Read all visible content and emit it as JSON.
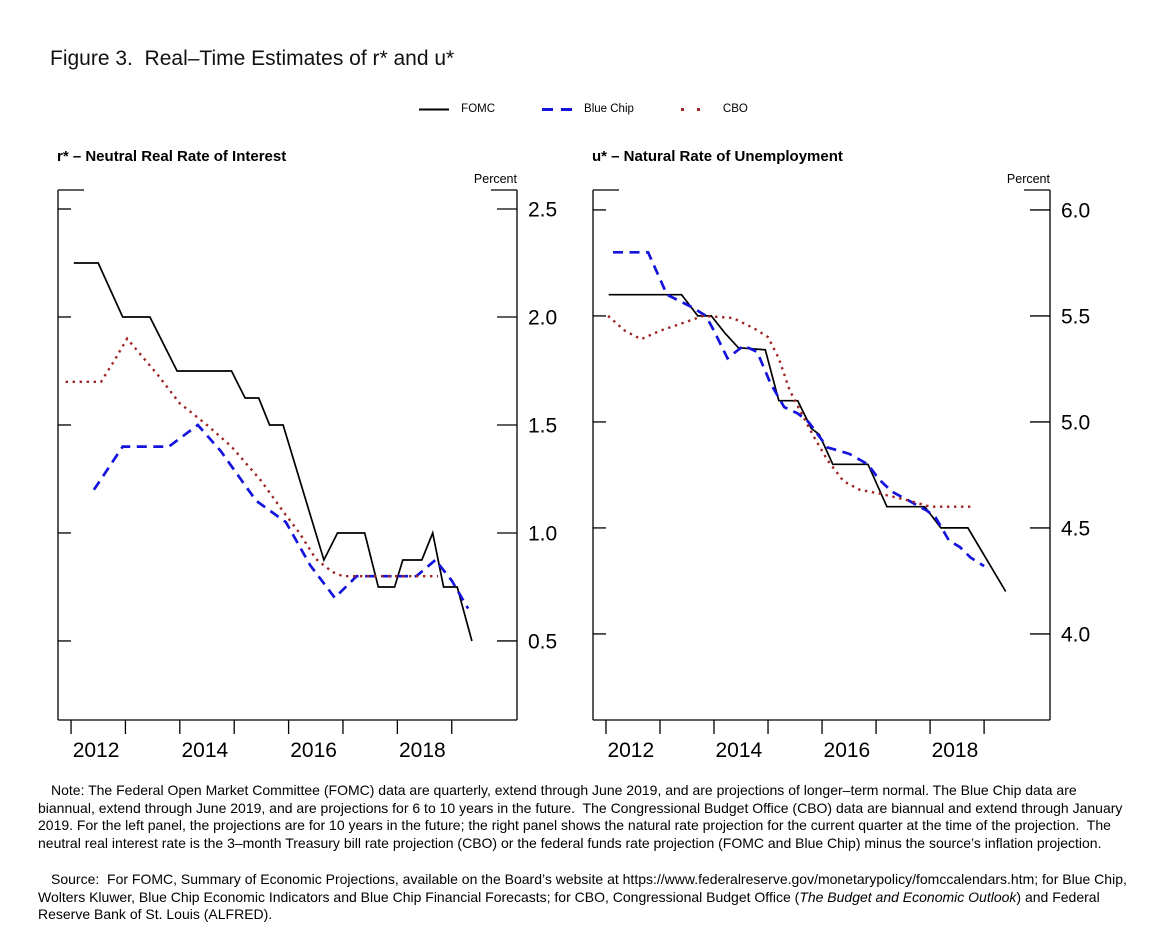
{
  "figure": {
    "title": "Figure 3.  Real–Time Estimates of r* and u*"
  },
  "legend": {
    "items": [
      {
        "label": "FOMC",
        "style": "solid",
        "color": "#000000"
      },
      {
        "label": "Blue Chip",
        "style": "dashed",
        "color": "#1414dd"
      },
      {
        "label": "CBO",
        "style": "dotted",
        "color": "#a02424"
      }
    ]
  },
  "chart_data": [
    {
      "type": "line",
      "panel": "left",
      "title": "r* – Neutral Real Rate of Interest",
      "unit_label": "Percent",
      "xlim": [
        2011.76,
        2020.2
      ],
      "ylim": [
        0.134,
        2.588
      ],
      "x_ticks": [
        2012,
        2013,
        2014,
        2015,
        2016,
        2017,
        2018,
        2019
      ],
      "x_tick_labels": [
        {
          "value": 2012.46,
          "label": "2012"
        },
        {
          "value": 2014.46,
          "label": "2014"
        },
        {
          "value": 2016.46,
          "label": "2016"
        },
        {
          "value": 2018.46,
          "label": "2018"
        }
      ],
      "y_ticks": [
        {
          "value": 0.5,
          "label": "0.5"
        },
        {
          "value": 1.0,
          "label": "1.0"
        },
        {
          "value": 1.5,
          "label": "1.5"
        },
        {
          "value": 2.0,
          "label": "2.0"
        },
        {
          "value": 2.5,
          "label": "2.5"
        }
      ],
      "series": [
        {
          "name": "FOMC",
          "style": "solid",
          "color": "#000000",
          "points": [
            [
              2012.05,
              2.25
            ],
            [
              2012.5,
              2.25
            ],
            [
              2012.95,
              2.0
            ],
            [
              2013.45,
              2.0
            ],
            [
              2013.95,
              1.75
            ],
            [
              2014.95,
              1.75
            ],
            [
              2015.2,
              1.625
            ],
            [
              2015.45,
              1.625
            ],
            [
              2015.65,
              1.5
            ],
            [
              2015.9,
              1.5
            ],
            [
              2016.65,
              0.875
            ],
            [
              2016.9,
              1.0
            ],
            [
              2017.4,
              1.0
            ],
            [
              2017.65,
              0.75
            ],
            [
              2017.95,
              0.75
            ],
            [
              2018.1,
              0.875
            ],
            [
              2018.45,
              0.875
            ],
            [
              2018.65,
              1.0
            ],
            [
              2018.85,
              0.75
            ],
            [
              2019.1,
              0.75
            ],
            [
              2019.37,
              0.5
            ]
          ]
        },
        {
          "name": "Blue Chip",
          "style": "dashed",
          "color": "#1414dd",
          "points": [
            [
              2012.42,
              1.2
            ],
            [
              2012.95,
              1.4
            ],
            [
              2013.8,
              1.4
            ],
            [
              2014.33,
              1.5
            ],
            [
              2014.75,
              1.38
            ],
            [
              2015.4,
              1.15
            ],
            [
              2015.95,
              1.05
            ],
            [
              2016.4,
              0.85
            ],
            [
              2016.85,
              0.7
            ],
            [
              2017.25,
              0.8
            ],
            [
              2018.35,
              0.8
            ],
            [
              2018.7,
              0.875
            ],
            [
              2019.0,
              0.78
            ],
            [
              2019.3,
              0.65
            ]
          ]
        },
        {
          "name": "CBO",
          "style": "dotted",
          "color": "#a02424",
          "points": [
            [
              2011.9,
              1.7
            ],
            [
              2012.55,
              1.7
            ],
            [
              2012.8,
              1.8
            ],
            [
              2013.03,
              1.9
            ],
            [
              2013.6,
              1.73
            ],
            [
              2014.0,
              1.6
            ],
            [
              2014.5,
              1.5
            ],
            [
              2014.95,
              1.4
            ],
            [
              2015.5,
              1.24
            ],
            [
              2015.9,
              1.1
            ],
            [
              2016.2,
              1.0
            ],
            [
              2016.5,
              0.88
            ],
            [
              2016.8,
              0.82
            ],
            [
              2017.0,
              0.8
            ],
            [
              2018.75,
              0.8
            ]
          ]
        }
      ]
    },
    {
      "type": "line",
      "panel": "right",
      "title": "u* – Natural Rate of Unemployment",
      "unit_label": "Percent",
      "xlim": [
        2011.76,
        2020.22
      ],
      "ylim": [
        3.594,
        6.094
      ],
      "x_ticks": [
        2012,
        2013,
        2014,
        2015,
        2016,
        2017,
        2018,
        2019
      ],
      "x_tick_labels": [
        {
          "value": 2012.46,
          "label": "2012"
        },
        {
          "value": 2014.46,
          "label": "2014"
        },
        {
          "value": 2016.46,
          "label": "2016"
        },
        {
          "value": 2018.46,
          "label": "2018"
        }
      ],
      "y_ticks": [
        {
          "value": 4.0,
          "label": "4.0"
        },
        {
          "value": 4.5,
          "label": "4.5"
        },
        {
          "value": 5.0,
          "label": "5.0"
        },
        {
          "value": 5.5,
          "label": "5.5"
        },
        {
          "value": 6.0,
          "label": "6.0"
        }
      ],
      "series": [
        {
          "name": "FOMC",
          "style": "solid",
          "color": "#000000",
          "points": [
            [
              2012.05,
              5.6
            ],
            [
              2013.4,
              5.6
            ],
            [
              2013.7,
              5.5
            ],
            [
              2013.95,
              5.5
            ],
            [
              2014.2,
              5.42
            ],
            [
              2014.45,
              5.35
            ],
            [
              2014.95,
              5.34
            ],
            [
              2015.2,
              5.1
            ],
            [
              2015.55,
              5.1
            ],
            [
              2015.8,
              4.97
            ],
            [
              2015.95,
              4.94
            ],
            [
              2016.2,
              4.8
            ],
            [
              2016.85,
              4.8
            ],
            [
              2017.2,
              4.6
            ],
            [
              2017.9,
              4.6
            ],
            [
              2018.2,
              4.5
            ],
            [
              2018.7,
              4.5
            ],
            [
              2019.4,
              4.2
            ]
          ]
        },
        {
          "name": "Blue Chip",
          "style": "dashed",
          "color": "#1414dd",
          "points": [
            [
              2012.13,
              5.8
            ],
            [
              2012.78,
              5.8
            ],
            [
              2013.13,
              5.6
            ],
            [
              2013.6,
              5.54
            ],
            [
              2013.85,
              5.5
            ],
            [
              2014.0,
              5.43
            ],
            [
              2014.25,
              5.3
            ],
            [
              2014.55,
              5.36
            ],
            [
              2014.8,
              5.33
            ],
            [
              2015.05,
              5.18
            ],
            [
              2015.3,
              5.07
            ],
            [
              2015.55,
              5.04
            ],
            [
              2015.75,
              5.0
            ],
            [
              2016.1,
              4.88
            ],
            [
              2016.5,
              4.85
            ],
            [
              2016.85,
              4.8
            ],
            [
              2017.05,
              4.73
            ],
            [
              2017.3,
              4.67
            ],
            [
              2017.6,
              4.63
            ],
            [
              2017.95,
              4.58
            ],
            [
              2018.1,
              4.55
            ],
            [
              2018.35,
              4.44
            ],
            [
              2018.55,
              4.41
            ],
            [
              2018.75,
              4.36
            ],
            [
              2019.0,
              4.32
            ]
          ]
        },
        {
          "name": "CBO",
          "style": "dotted",
          "color": "#a02424",
          "points": [
            [
              2012.04,
              5.5
            ],
            [
              2012.35,
              5.43
            ],
            [
              2012.65,
              5.39
            ],
            [
              2013.0,
              5.43
            ],
            [
              2013.35,
              5.46
            ],
            [
              2013.8,
              5.5
            ],
            [
              2014.35,
              5.49
            ],
            [
              2014.75,
              5.44
            ],
            [
              2015.0,
              5.4
            ],
            [
              2015.2,
              5.3
            ],
            [
              2015.4,
              5.15
            ],
            [
              2015.6,
              5.05
            ],
            [
              2015.85,
              4.93
            ],
            [
              2016.1,
              4.82
            ],
            [
              2016.4,
              4.72
            ],
            [
              2016.7,
              4.68
            ],
            [
              2017.1,
              4.66
            ],
            [
              2017.6,
              4.63
            ],
            [
              2018.0,
              4.6
            ],
            [
              2018.78,
              4.6
            ]
          ]
        }
      ]
    }
  ],
  "notes": {
    "note": "Note: The Federal Open Market Committee (FOMC) data are quarterly, extend through June 2019, and are projections of longer–term normal. The Blue Chip data are biannual, extend through June 2019, and are projections for 6 to 10 years in the future.  The Congressional Budget Office (CBO) data are biannual and extend through January 2019. For the left panel, the projections are for 10 years in the future; the right panel shows the natural rate projection for the current quarter at the time of the projection.  The neutral real interest rate is the 3–month Treasury bill rate projection (CBO) or the federal funds rate projection (FOMC and Blue Chip) minus the source’s inflation projection.",
    "source_prefix": "Source:  For FOMC, Summary of Economic Projections, available on the Board’s website at https://www.federalreserve.gov/monetarypolicy/fomccalendars.htm; for Blue Chip, Wolters Kluwer, Blue Chip Economic Indicators and Blue Chip Financial Forecasts; for CBO, Congressional Budget Office (",
    "source_italic": "The Budget and Economic Outlook",
    "source_suffix": ") and Federal Reserve Bank of St. Louis (ALFRED)."
  }
}
